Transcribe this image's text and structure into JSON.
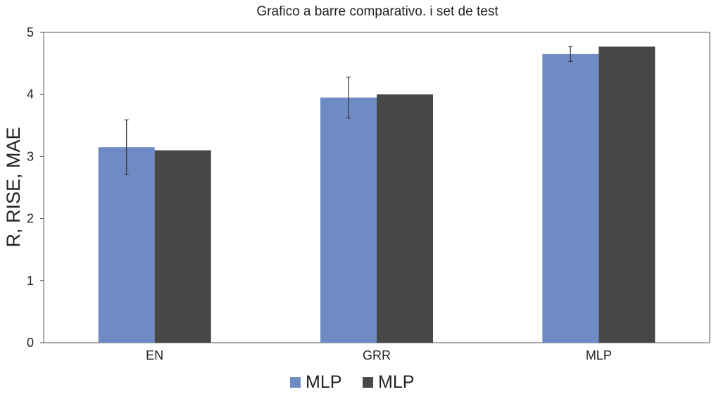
{
  "chart_data": {
    "type": "bar",
    "title": "Grafico a barre comparativo. i set de test",
    "xlabel": "",
    "ylabel": "R, RISE, MAE",
    "ylim": [
      0,
      5
    ],
    "yticks": [
      0,
      1,
      2,
      3,
      4,
      5
    ],
    "grid": false,
    "legend_position": "bottom-center",
    "categories": [
      "EN",
      "GRR",
      "MLP"
    ],
    "series": [
      {
        "name": "MLP",
        "color": "#6f8bc4",
        "values": [
          3.15,
          3.95,
          4.65
        ],
        "error": [
          0.44,
          0.33,
          0.12
        ]
      },
      {
        "name": "MLP",
        "color": "#474747",
        "values": [
          3.1,
          4.0,
          4.77
        ]
      }
    ]
  }
}
